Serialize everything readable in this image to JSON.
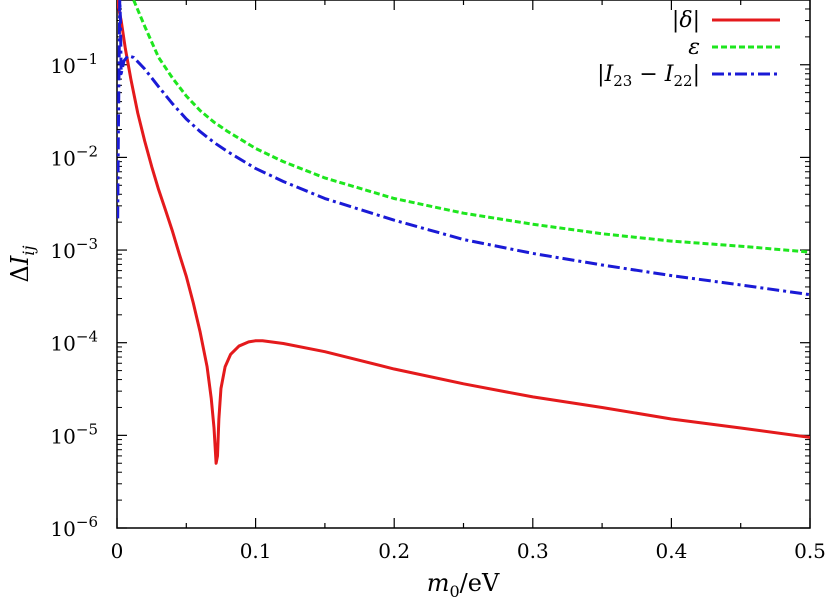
{
  "chart_data": {
    "type": "line",
    "xlabel": {
      "var": "m",
      "sub": "0",
      "unit": "/eV"
    },
    "ylabel": {
      "prefix": "Δ",
      "var": "I",
      "sub": "ij"
    },
    "xlim": [
      0,
      0.5
    ],
    "ylim": [
      1e-06,
      0.5
    ],
    "yscale": "log",
    "grid": false,
    "legend_position": "top-right",
    "x_ticks": [
      {
        "value": 0,
        "label": "0"
      },
      {
        "value": 0.1,
        "label": "0.1"
      },
      {
        "value": 0.2,
        "label": "0.2"
      },
      {
        "value": 0.3,
        "label": "0.3"
      },
      {
        "value": 0.4,
        "label": "0.4"
      },
      {
        "value": 0.5,
        "label": "0.5"
      }
    ],
    "y_ticks": [
      {
        "value": 1e-06,
        "base": "10",
        "exp": "−6"
      },
      {
        "value": 1e-05,
        "base": "10",
        "exp": "−5"
      },
      {
        "value": 0.0001,
        "base": "10",
        "exp": "−4"
      },
      {
        "value": 0.001,
        "base": "10",
        "exp": "−3"
      },
      {
        "value": 0.01,
        "base": "10",
        "exp": "−2"
      },
      {
        "value": 0.1,
        "base": "10",
        "exp": "−1"
      }
    ],
    "series": [
      {
        "name": "|δ|",
        "color": "#e41a1c",
        "dash": "solid",
        "points": [
          [
            0.0,
            0.5
          ],
          [
            0.003,
            0.3
          ],
          [
            0.006,
            0.15
          ],
          [
            0.01,
            0.07
          ],
          [
            0.015,
            0.03
          ],
          [
            0.02,
            0.015
          ],
          [
            0.025,
            0.008
          ],
          [
            0.03,
            0.0045
          ],
          [
            0.035,
            0.0027
          ],
          [
            0.04,
            0.0016
          ],
          [
            0.045,
            0.0009
          ],
          [
            0.05,
            0.00052
          ],
          [
            0.055,
            0.00027
          ],
          [
            0.06,
            0.00013
          ],
          [
            0.065,
            5.5e-05
          ],
          [
            0.068,
            2.5e-05
          ],
          [
            0.07,
            1.2e-05
          ],
          [
            0.0715,
            5e-06
          ],
          [
            0.0725,
            6e-06
          ],
          [
            0.0735,
            1.5e-05
          ],
          [
            0.075,
            3.2e-05
          ],
          [
            0.078,
            5.5e-05
          ],
          [
            0.082,
            7.5e-05
          ],
          [
            0.088,
            9.2e-05
          ],
          [
            0.095,
            0.000102
          ],
          [
            0.1,
            0.000105
          ],
          [
            0.105,
            0.000105
          ],
          [
            0.12,
            9.8e-05
          ],
          [
            0.15,
            8e-05
          ],
          [
            0.2,
            5.2e-05
          ],
          [
            0.25,
            3.6e-05
          ],
          [
            0.3,
            2.6e-05
          ],
          [
            0.35,
            2e-05
          ],
          [
            0.4,
            1.5e-05
          ],
          [
            0.45,
            1.2e-05
          ],
          [
            0.5,
            9.5e-06
          ]
        ]
      },
      {
        "name": "ε",
        "color": "#1ee61e",
        "dash": "dashed",
        "points": [
          [
            0.012,
            0.5
          ],
          [
            0.02,
            0.26
          ],
          [
            0.03,
            0.12
          ],
          [
            0.04,
            0.072
          ],
          [
            0.05,
            0.046
          ],
          [
            0.06,
            0.032
          ],
          [
            0.07,
            0.024
          ],
          [
            0.08,
            0.019
          ],
          [
            0.1,
            0.0125
          ],
          [
            0.12,
            0.009
          ],
          [
            0.15,
            0.006
          ],
          [
            0.2,
            0.0036
          ],
          [
            0.25,
            0.0025
          ],
          [
            0.3,
            0.0019
          ],
          [
            0.35,
            0.0015
          ],
          [
            0.4,
            0.00125
          ],
          [
            0.45,
            0.0011
          ],
          [
            0.5,
            0.00095
          ]
        ]
      },
      {
        "name": "|I23 − I22|",
        "legend_parts": [
          "|",
          "I",
          "23",
          " − ",
          "I",
          "22",
          "|"
        ],
        "color": "#1a1ad6",
        "dash": "dashdot",
        "points": [
          [
            0.0005,
            0.0022
          ],
          [
            0.001,
            0.02
          ],
          [
            0.0015,
            0.1
          ],
          [
            0.002,
            0.5
          ],
          [
            0.0025,
            0.3
          ],
          [
            0.003,
            0.08
          ],
          [
            0.005,
            0.11
          ],
          [
            0.008,
            0.125
          ],
          [
            0.012,
            0.12
          ],
          [
            0.02,
            0.09
          ],
          [
            0.03,
            0.058
          ],
          [
            0.04,
            0.038
          ],
          [
            0.05,
            0.026
          ],
          [
            0.06,
            0.019
          ],
          [
            0.07,
            0.0145
          ],
          [
            0.08,
            0.0115
          ],
          [
            0.1,
            0.0076
          ],
          [
            0.12,
            0.0055
          ],
          [
            0.15,
            0.0036
          ],
          [
            0.2,
            0.0021
          ],
          [
            0.25,
            0.0013
          ],
          [
            0.3,
            0.00092
          ],
          [
            0.35,
            0.00069
          ],
          [
            0.4,
            0.00053
          ],
          [
            0.45,
            0.00042
          ],
          [
            0.5,
            0.00033
          ]
        ]
      }
    ]
  }
}
